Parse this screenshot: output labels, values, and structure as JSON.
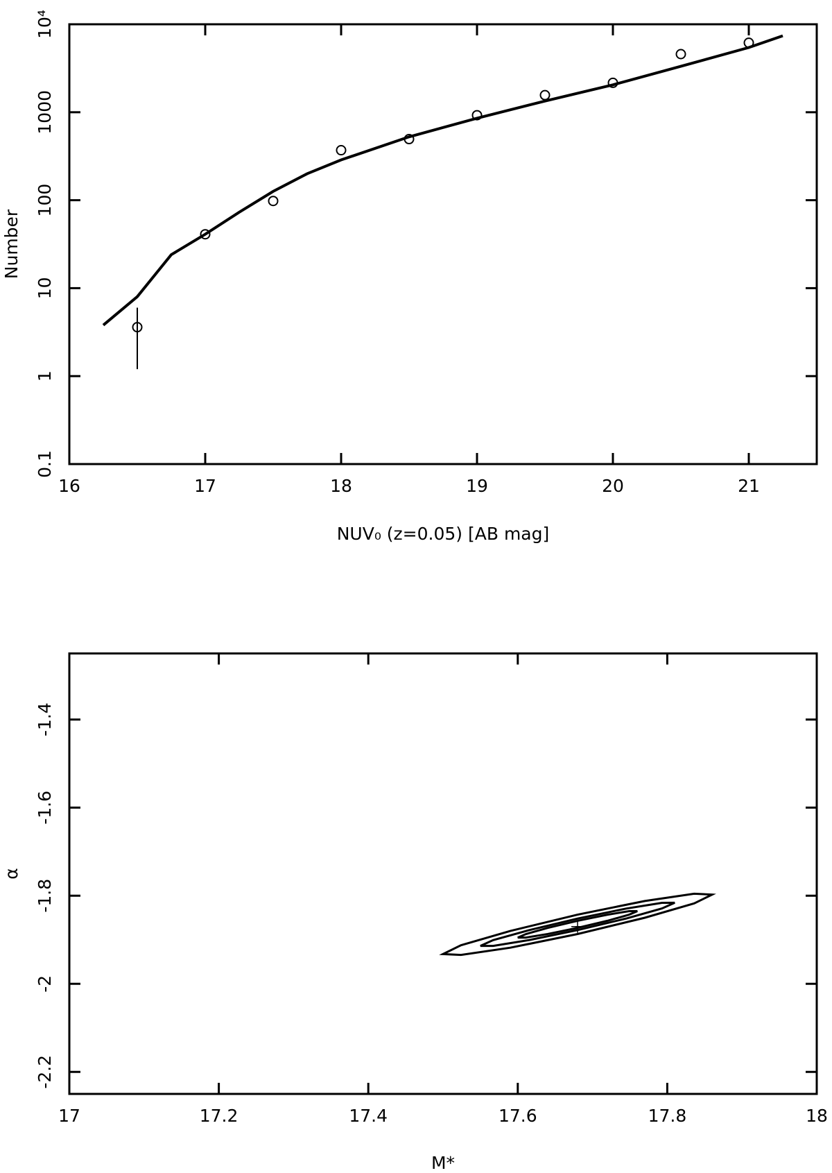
{
  "chart_data": [
    {
      "type": "scatter",
      "xlabel": "NUV₀ (z=0.05) [AB mag]",
      "ylabel": "Number",
      "xlim": [
        16,
        21.5
      ],
      "ylim": [
        0.1,
        10000
      ],
      "log_y": true,
      "xticks": [
        16,
        17,
        18,
        19,
        20,
        21
      ],
      "yticks": [
        0.1,
        1,
        10,
        100,
        1000,
        {
          "value": 10000,
          "label": "10⁴"
        }
      ],
      "series": [
        {
          "style": "points",
          "color": "#000000",
          "x": [
            16.5,
            17,
            17.5,
            18,
            18.5,
            19,
            19.5,
            20,
            20.5,
            21
          ],
          "values": [
            3.6,
            41,
            98,
            370,
            495,
            925,
            1565,
            2160,
            4580,
            6160
          ],
          "errors": [
            2.4,
            null,
            null,
            null,
            null,
            null,
            null,
            null,
            null,
            null
          ]
        },
        {
          "style": "line",
          "color": "#000000",
          "x": [
            16.25,
            16.5,
            16.75,
            17,
            17.25,
            17.5,
            17.75,
            18,
            18.5,
            19,
            19.5,
            20,
            20.5,
            21,
            21.25
          ],
          "values": [
            3.8,
            8,
            24,
            41,
            73,
            126,
            200,
            287,
            525,
            855,
            1340,
            2050,
            3330,
            5440,
            7400
          ]
        }
      ]
    },
    {
      "type": "contour",
      "xlabel": "M*",
      "ylabel": "α",
      "xlim": [
        17,
        18
      ],
      "ylim": [
        -2.25,
        -1.25
      ],
      "xticks": [
        17,
        17.2,
        17.4,
        17.6,
        17.8,
        18
      ],
      "yticks": [
        -2.2,
        -2,
        -1.8,
        -1.6,
        -1.4
      ],
      "color": "#000000",
      "contours": [
        {
          "x": [
            17.86,
            17.836,
            17.77,
            17.68,
            17.59,
            17.524,
            17.5,
            17.524,
            17.59,
            17.68,
            17.77,
            17.836
          ],
          "y": [
            -1.7975,
            -1.7955,
            -1.812,
            -1.843,
            -1.88,
            -1.9125,
            -1.9325,
            -1.9345,
            -1.918,
            -1.887,
            -1.85,
            -1.8175
          ]
        },
        {
          "x": [
            17.81,
            17.793,
            17.745,
            17.68,
            17.615,
            17.567,
            17.55,
            17.567,
            17.615,
            17.68,
            17.745,
            17.793
          ],
          "y": [
            -1.816,
            -1.8161,
            -1.8292,
            -1.852,
            -1.8782,
            -1.9009,
            -1.914,
            -1.9139,
            -1.9008,
            -1.878,
            -1.8518,
            -1.8289
          ]
        },
        {
          "x": [
            17.76,
            17.749,
            17.72,
            17.68,
            17.64,
            17.611,
            17.6,
            17.611,
            17.64,
            17.68,
            17.72,
            17.749
          ],
          "y": [
            -1.835,
            -1.835,
            -1.8431,
            -1.857,
            -1.8731,
            -1.887,
            -1.895,
            -1.895,
            -1.8869,
            -1.873,
            -1.8569,
            -1.843
          ]
        }
      ],
      "best_fit": {
        "x": 17.68,
        "y": -1.87
      }
    }
  ]
}
